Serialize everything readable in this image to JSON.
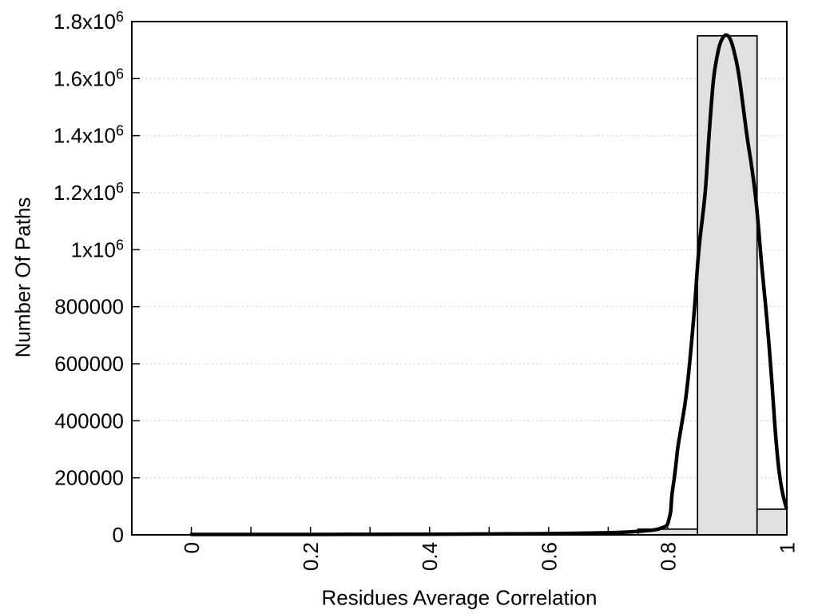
{
  "figure": {
    "background": "#ffffff",
    "title": ""
  },
  "chart_data": {
    "type": "histogram+line",
    "title": "",
    "xlabel": "Residues Average Correlation",
    "ylabel": "Number Of Paths",
    "xlim": [
      -0.1,
      1.0
    ],
    "ylim": [
      0,
      1800000
    ],
    "grid": {
      "horizontal_dotted": true,
      "vertical": false,
      "color": "#c4c4c4"
    },
    "legend": "none",
    "x_ticks": {
      "tick_values": [
        0,
        0.1,
        0.2,
        0.3,
        0.4,
        0.5,
        0.6,
        0.7,
        0.8,
        0.9,
        1.0
      ],
      "labels": [
        {
          "value": 0,
          "label": "0"
        },
        {
          "value": 0.2,
          "label": "0.2"
        },
        {
          "value": 0.4,
          "label": "0.4"
        },
        {
          "value": 0.6,
          "label": "0.6"
        },
        {
          "value": 0.8,
          "label": "0.8"
        },
        {
          "value": 1.0,
          "label": "1"
        }
      ],
      "label_rotation_deg": -90
    },
    "y_ticks": [
      {
        "value": 0,
        "label": "0"
      },
      {
        "value": 200000,
        "label": "200000"
      },
      {
        "value": 400000,
        "label": "400000"
      },
      {
        "value": 600000,
        "label": "600000"
      },
      {
        "value": 800000,
        "label": "800000"
      },
      {
        "value": 1000000,
        "label": "1x10^6"
      },
      {
        "value": 1200000,
        "label": "1.2x10^6"
      },
      {
        "value": 1400000,
        "label": "1.4x10^6"
      },
      {
        "value": 1600000,
        "label": "1.6x10^6"
      },
      {
        "value": 1800000,
        "label": "1.8x10^6"
      }
    ],
    "histogram": {
      "bin_width": 0.1,
      "fill_color": "#e0e0e0",
      "stroke_color": "#000000",
      "bars": [
        {
          "x_start": 0.75,
          "x_end": 0.85,
          "count": 20000
        },
        {
          "x_start": 0.85,
          "x_end": 0.95,
          "count": 1750000
        },
        {
          "x_start": 0.95,
          "x_end": 1.0,
          "count": 90000
        }
      ]
    },
    "fit_curve": {
      "color": "#000000",
      "peak": {
        "x": 0.898,
        "y": 1753000
      },
      "points": [
        [
          0.0,
          1500
        ],
        [
          0.1,
          1500
        ],
        [
          0.2,
          1500
        ],
        [
          0.3,
          1800
        ],
        [
          0.4,
          2200
        ],
        [
          0.5,
          3000
        ],
        [
          0.58,
          4000
        ],
        [
          0.65,
          5500
        ],
        [
          0.7,
          7500
        ],
        [
          0.725,
          9000
        ],
        [
          0.752,
          12500
        ],
        [
          0.779,
          18000
        ],
        [
          0.792,
          26000
        ],
        [
          0.799,
          35000
        ],
        [
          0.802,
          55000
        ],
        [
          0.805,
          83000
        ],
        [
          0.807,
          139000
        ],
        [
          0.811,
          200000
        ],
        [
          0.814,
          251000
        ],
        [
          0.817,
          307000
        ],
        [
          0.823,
          383000
        ],
        [
          0.83,
          475000
        ],
        [
          0.837,
          607000
        ],
        [
          0.845,
          797000
        ],
        [
          0.85,
          943000
        ],
        [
          0.854,
          1036000
        ],
        [
          0.863,
          1204000
        ],
        [
          0.87,
          1420000
        ],
        [
          0.877,
          1600000
        ],
        [
          0.885,
          1700000
        ],
        [
          0.891,
          1738000
        ],
        [
          0.898,
          1753000
        ],
        [
          0.905,
          1738000
        ],
        [
          0.912,
          1690000
        ],
        [
          0.92,
          1605000
        ],
        [
          0.933,
          1400000
        ],
        [
          0.941,
          1290000
        ],
        [
          0.949,
          1156000
        ],
        [
          0.958,
          940000
        ],
        [
          0.9665,
          755000
        ],
        [
          0.974,
          560000
        ],
        [
          0.98,
          380000
        ],
        [
          0.986,
          240000
        ],
        [
          0.992,
          155000
        ],
        [
          0.999,
          95000
        ]
      ]
    }
  }
}
